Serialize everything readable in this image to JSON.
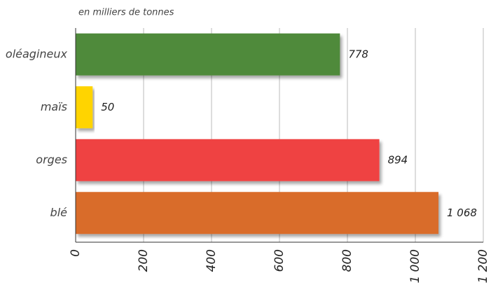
{
  "chart_data": {
    "type": "barh",
    "subtitle": "en milliers de tonnes",
    "categories": [
      "oléagineux",
      "maïs",
      "orges",
      "blé"
    ],
    "values": [
      778,
      50,
      894,
      1068
    ],
    "value_labels": [
      "778",
      "50",
      "894",
      "1 068"
    ],
    "colors": [
      "#4f8a3b",
      "#ffd400",
      "#ef4343",
      "#d96c2b"
    ],
    "xlim": [
      0,
      1200
    ],
    "xticks": [
      0,
      200,
      400,
      600,
      800,
      {
        "value": 1000,
        "label": "1 000"
      },
      {
        "value": 1200,
        "label": "1 200"
      }
    ],
    "grid": true
  }
}
